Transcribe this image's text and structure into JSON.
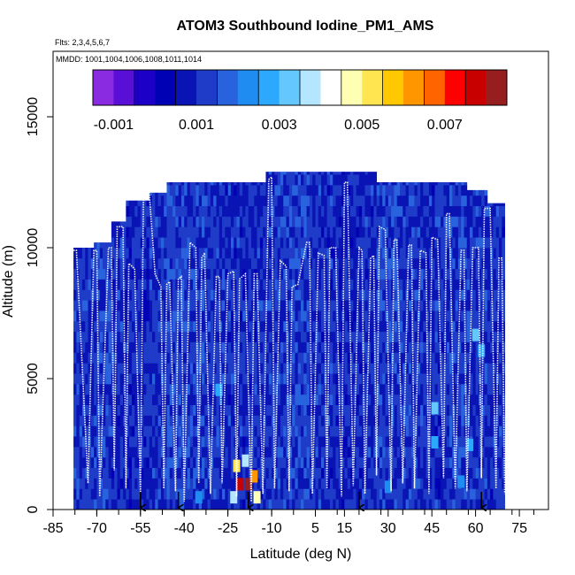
{
  "chart_data": {
    "type": "heatmap",
    "title": "ATOM3 Southbound Iodine_PM1_AMS",
    "flights_note": "Flts: 2,3,4,5,6,7",
    "dates_note": "MMDD: 1001,1004,1006,1008,1011,1014",
    "xlabel": "Latitude (deg N)",
    "ylabel": "Altitude (m)",
    "xlim": [
      -85,
      85
    ],
    "ylim": [
      0,
      17500
    ],
    "x_ticks": [
      -85,
      -70,
      -55,
      -40,
      -25,
      -10,
      5,
      15,
      30,
      45,
      60,
      75
    ],
    "y_ticks": [
      0,
      5000,
      10000,
      15000
    ],
    "colorbar": {
      "range": [
        -0.0015,
        0.0085
      ],
      "tick_values": [
        -0.001,
        0.001,
        0.003,
        0.005,
        0.007
      ],
      "tick_labels": [
        "-0.001",
        "0.001",
        "0.003",
        "0.005",
        "0.007"
      ],
      "colors": [
        "#8a2be2",
        "#5a0fd6",
        "#1c00c8",
        "#0000b4",
        "#0a14b4",
        "#1e3cc8",
        "#2862dc",
        "#1e8cf0",
        "#2ca8ff",
        "#64c8ff",
        "#b4e6ff",
        "#ffffff",
        "#ffffb4",
        "#ffe650",
        "#ffc800",
        "#ff9600",
        "#ff6400",
        "#ff0000",
        "#c80000",
        "#961e1e"
      ]
    },
    "arrow_latitudes": [
      -55,
      -42,
      -18,
      20,
      62
    ],
    "profile_columns": [
      {
        "lat0": -78,
        "lat1": -71,
        "top": 10000,
        "value": 0.0011
      },
      {
        "lat0": -71,
        "lat1": -65,
        "top": 10200,
        "value": 0.0012
      },
      {
        "lat0": -65,
        "lat1": -60,
        "top": 11000,
        "value": 0.001
      },
      {
        "lat0": -60,
        "lat1": -52,
        "top": 11800,
        "value": 0.0009
      },
      {
        "lat0": -52,
        "lat1": -46,
        "top": 12100,
        "value": 0.0011
      },
      {
        "lat0": -46,
        "lat1": -40,
        "top": 12500,
        "value": 0.0013
      },
      {
        "lat0": -40,
        "lat1": -33,
        "top": 12500,
        "value": 0.0012
      },
      {
        "lat0": -33,
        "lat1": -26,
        "top": 12500,
        "value": 0.0011
      },
      {
        "lat0": -26,
        "lat1": -19,
        "top": 12500,
        "value": 0.001
      },
      {
        "lat0": -19,
        "lat1": -12,
        "top": 12500,
        "value": 0.001
      },
      {
        "lat0": -12,
        "lat1": -5,
        "top": 12900,
        "value": 0.0011
      },
      {
        "lat0": -5,
        "lat1": 3,
        "top": 12900,
        "value": 0.0012
      },
      {
        "lat0": 3,
        "lat1": 11,
        "top": 12900,
        "value": 0.001
      },
      {
        "lat0": 11,
        "lat1": 19,
        "top": 12900,
        "value": 0.0009
      },
      {
        "lat0": 19,
        "lat1": 26,
        "top": 12900,
        "value": 0.001
      },
      {
        "lat0": 26,
        "lat1": 34,
        "top": 12500,
        "value": 0.0012
      },
      {
        "lat0": 34,
        "lat1": 42,
        "top": 12500,
        "value": 0.0011
      },
      {
        "lat0": 42,
        "lat1": 50,
        "top": 12500,
        "value": 0.001
      },
      {
        "lat0": 50,
        "lat1": 57,
        "top": 12500,
        "value": 0.0012
      },
      {
        "lat0": 57,
        "lat1": 64,
        "top": 12200,
        "value": 0.0011
      },
      {
        "lat0": 64,
        "lat1": 70,
        "top": 11700,
        "value": 0.001
      }
    ],
    "hotspots": [
      {
        "lat": -21,
        "alt": 900,
        "value": 0.0075
      },
      {
        "lat": -18,
        "alt": 900,
        "value": 0.0085
      },
      {
        "lat": -16,
        "alt": 1200,
        "value": 0.006
      },
      {
        "lat": -15,
        "alt": 400,
        "value": 0.0045
      },
      {
        "lat": -22,
        "alt": 1600,
        "value": 0.005
      },
      {
        "lat": -19,
        "alt": 1800,
        "value": 0.004
      },
      {
        "lat": -23,
        "alt": 400,
        "value": 0.004
      },
      {
        "lat": -28,
        "alt": 4500,
        "value": 0.0025
      },
      {
        "lat": 46,
        "alt": 3800,
        "value": 0.0032
      },
      {
        "lat": 46,
        "alt": 2500,
        "value": 0.0028
      },
      {
        "lat": 60,
        "alt": 6600,
        "value": 0.003
      },
      {
        "lat": 62,
        "alt": 6000,
        "value": 0.0026
      },
      {
        "lat": 58,
        "alt": 2400,
        "value": 0.0025
      },
      {
        "lat": 55,
        "alt": 1000,
        "value": 0.0023
      },
      {
        "lat": 30,
        "alt": 800,
        "value": 0.0023
      },
      {
        "lat": -35,
        "alt": 400,
        "value": 0.0022
      }
    ],
    "flight_track": {
      "lat": [
        -78,
        -77,
        -73,
        -71,
        -70,
        -69,
        -66,
        -65,
        -64,
        -63,
        -61,
        -60,
        -59,
        -57,
        -55,
        -54,
        -53,
        -52,
        -50,
        -48,
        -47,
        -46,
        -45,
        -43,
        -42,
        -41,
        -40,
        -38,
        -36,
        -35,
        -34,
        -33,
        -31,
        -29,
        -28,
        -27,
        -25,
        -23,
        -22,
        -21,
        -19,
        -17,
        -16,
        -15,
        -13,
        -11,
        -10,
        -9,
        -7,
        -5,
        -4,
        -3,
        -1,
        2,
        3,
        4,
        6,
        8,
        9,
        10,
        12,
        14,
        15,
        16,
        18,
        20,
        21,
        22,
        24,
        25,
        26,
        27,
        29,
        31,
        32,
        33,
        35,
        37,
        38,
        39,
        41,
        43,
        44,
        45,
        47,
        49,
        50,
        51,
        53,
        55,
        56,
        57,
        59,
        61,
        62,
        63,
        65,
        67,
        68,
        69,
        70
      ],
      "alt": [
        9900,
        9900,
        1000,
        9900,
        9900,
        500,
        10000,
        10000,
        1500,
        10800,
        10800,
        800,
        9400,
        9200,
        600,
        11800,
        12000,
        12100,
        9000,
        8500,
        800,
        8600,
        8700,
        700,
        8800,
        8900,
        300,
        10200,
        10000,
        1000,
        9600,
        9800,
        600,
        8900,
        8900,
        1000,
        9000,
        9100,
        500,
        8800,
        9000,
        300,
        9000,
        9000,
        600,
        12600,
        12700,
        800,
        9500,
        9300,
        700,
        8500,
        8600,
        10200,
        10200,
        600,
        9800,
        9700,
        800,
        10000,
        10000,
        500,
        12500,
        12500,
        900,
        10000,
        9900,
        600,
        9600,
        9700,
        1300,
        10800,
        10700,
        700,
        10300,
        10300,
        1000,
        10100,
        10100,
        800,
        9900,
        9800,
        600,
        10400,
        10300,
        1200,
        11300,
        11300,
        800,
        9900,
        9900,
        700,
        10000,
        10000,
        1200,
        11500,
        11500,
        800,
        9600,
        9600,
        600
      ]
    }
  }
}
